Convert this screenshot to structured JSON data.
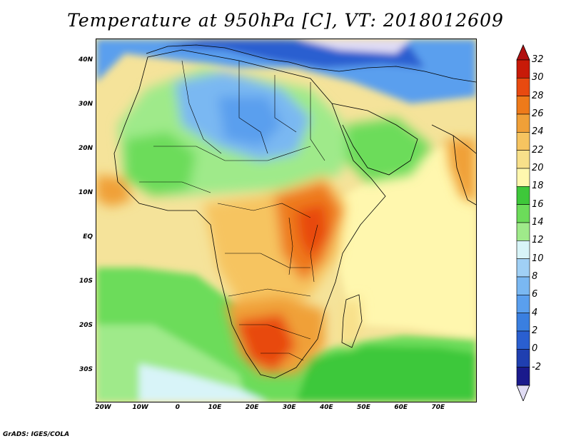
{
  "title": "Temperature at 950hPa [C], VT: 2018012609",
  "credit": "GrADS: IGES/COLA",
  "lat_labels": [
    {
      "text": "40N",
      "lat": 40
    },
    {
      "text": "30N",
      "lat": 30
    },
    {
      "text": "20N",
      "lat": 20
    },
    {
      "text": "10N",
      "lat": 10
    },
    {
      "text": "EQ",
      "lat": 0
    },
    {
      "text": "10S",
      "lat": -10
    },
    {
      "text": "20S",
      "lat": -20
    },
    {
      "text": "30S",
      "lat": -30
    }
  ],
  "lon_labels": [
    {
      "text": "20W",
      "lon": -20
    },
    {
      "text": "10W",
      "lon": -10
    },
    {
      "text": "0",
      "lon": 0
    },
    {
      "text": "10E",
      "lon": 10
    },
    {
      "text": "20E",
      "lon": 20
    },
    {
      "text": "30E",
      "lon": 30
    },
    {
      "text": "40E",
      "lon": 40
    },
    {
      "text": "50E",
      "lon": 50
    },
    {
      "text": "60E",
      "lon": 60
    },
    {
      "text": "70E",
      "lon": 70
    }
  ],
  "extent": {
    "lon_min": -22,
    "lon_max": 80,
    "lat_min": -37,
    "lat_max": 45
  },
  "colorbar": {
    "unit": "C",
    "levels": [
      "-2",
      "0",
      "2",
      "4",
      "6",
      "8",
      "10",
      "12",
      "14",
      "16",
      "18",
      "20",
      "22",
      "24",
      "26",
      "28",
      "30",
      "32"
    ],
    "colors": [
      "#1a1a8c",
      "#1f3fb0",
      "#2a5fd0",
      "#3a7fe0",
      "#5a9fee",
      "#7ab8f2",
      "#a0d0f5",
      "#d8f4f8",
      "#9fea8a",
      "#6cdc5a",
      "#3ec83a",
      "#fff7ae",
      "#f8e08a",
      "#f6c460",
      "#f0a038",
      "#ee7a1a",
      "#e84a10",
      "#c81a08"
    ],
    "under_color": "#e0dcf4",
    "over_color": "#b01010"
  }
}
